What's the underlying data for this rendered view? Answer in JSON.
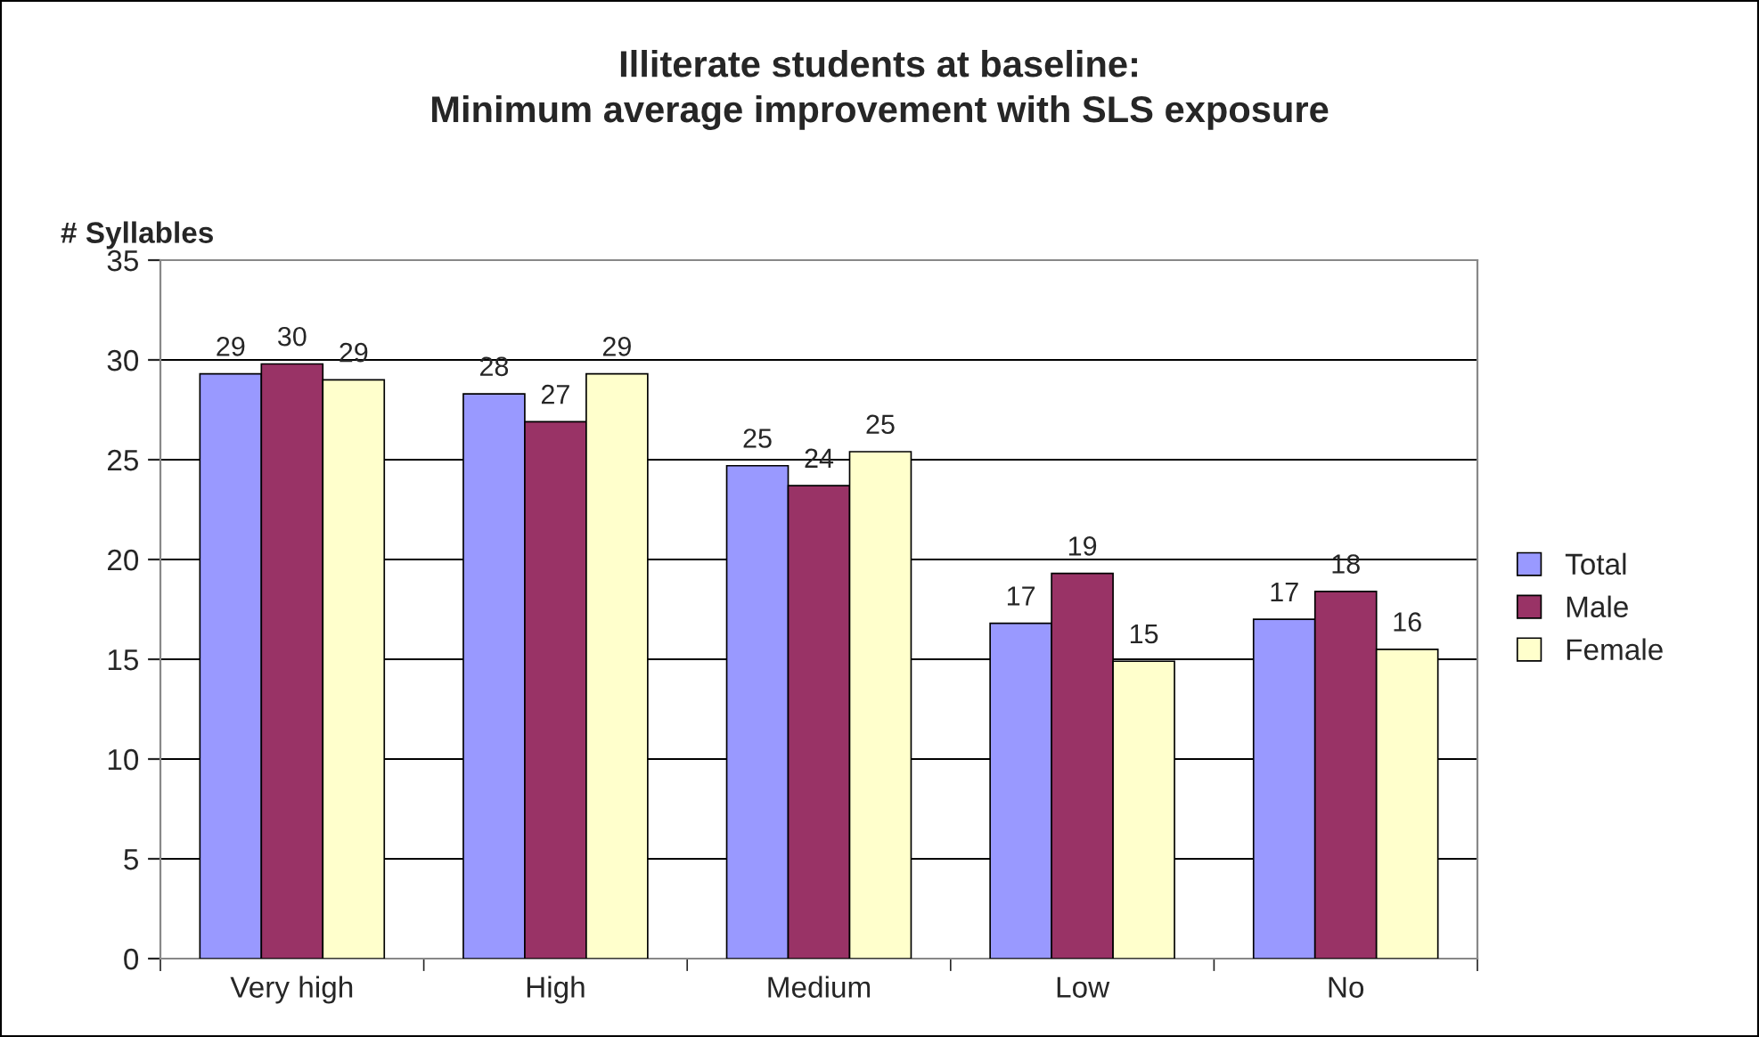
{
  "chart_data": {
    "type": "bar",
    "title": "Illiterate students at baseline:\nMinimum average improvement with SLS exposure",
    "ylabel": "# Syllables",
    "categories": [
      "Very high",
      "High",
      "Medium",
      "Low",
      "No"
    ],
    "series": [
      {
        "name": "Total",
        "color": "#9999ff",
        "values": [
          29.3,
          28.3,
          24.7,
          16.8,
          17.0
        ],
        "value_labels": [
          "29",
          "28",
          "25",
          "17",
          "17"
        ]
      },
      {
        "name": "Male",
        "color": "#993366",
        "values": [
          29.8,
          26.9,
          23.7,
          19.3,
          18.4
        ],
        "value_labels": [
          "30",
          "27",
          "24",
          "19",
          "18"
        ]
      },
      {
        "name": "Female",
        "color": "#ffffcc",
        "values": [
          29.0,
          29.3,
          25.4,
          14.9,
          15.5
        ],
        "value_labels": [
          "29",
          "29",
          "25",
          "15",
          "16"
        ]
      }
    ],
    "ylim": [
      0,
      35
    ],
    "yticks": [
      0,
      5,
      10,
      15,
      20,
      25,
      30,
      35
    ],
    "grid": "y",
    "legend": "right"
  }
}
